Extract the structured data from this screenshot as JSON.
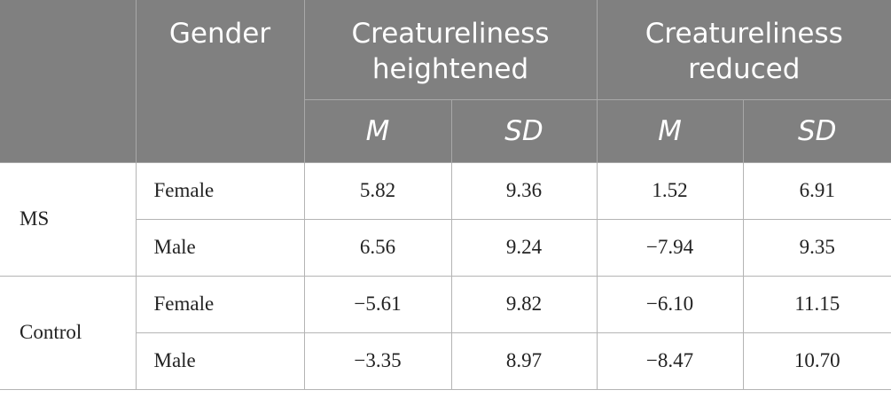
{
  "table": {
    "header": {
      "gender": "Gender",
      "groups": [
        "Creatureliness heightened",
        "Creatureliness reduced"
      ],
      "sub": [
        "M",
        "SD",
        "M",
        "SD"
      ]
    },
    "groups": [
      {
        "label": "MS",
        "rows": [
          {
            "gender": "Female",
            "values": [
              "5.82",
              "9.36",
              "1.52",
              "6.91"
            ]
          },
          {
            "gender": "Male",
            "values": [
              "6.56",
              "9.24",
              "−7.94",
              "9.35"
            ]
          }
        ]
      },
      {
        "label": "Control",
        "rows": [
          {
            "gender": "Female",
            "values": [
              "−5.61",
              "9.82",
              "−6.10",
              "11.15"
            ]
          },
          {
            "gender": "Male",
            "values": [
              "−3.35",
              "8.97",
              "−8.47",
              "10.70"
            ]
          }
        ]
      }
    ]
  }
}
